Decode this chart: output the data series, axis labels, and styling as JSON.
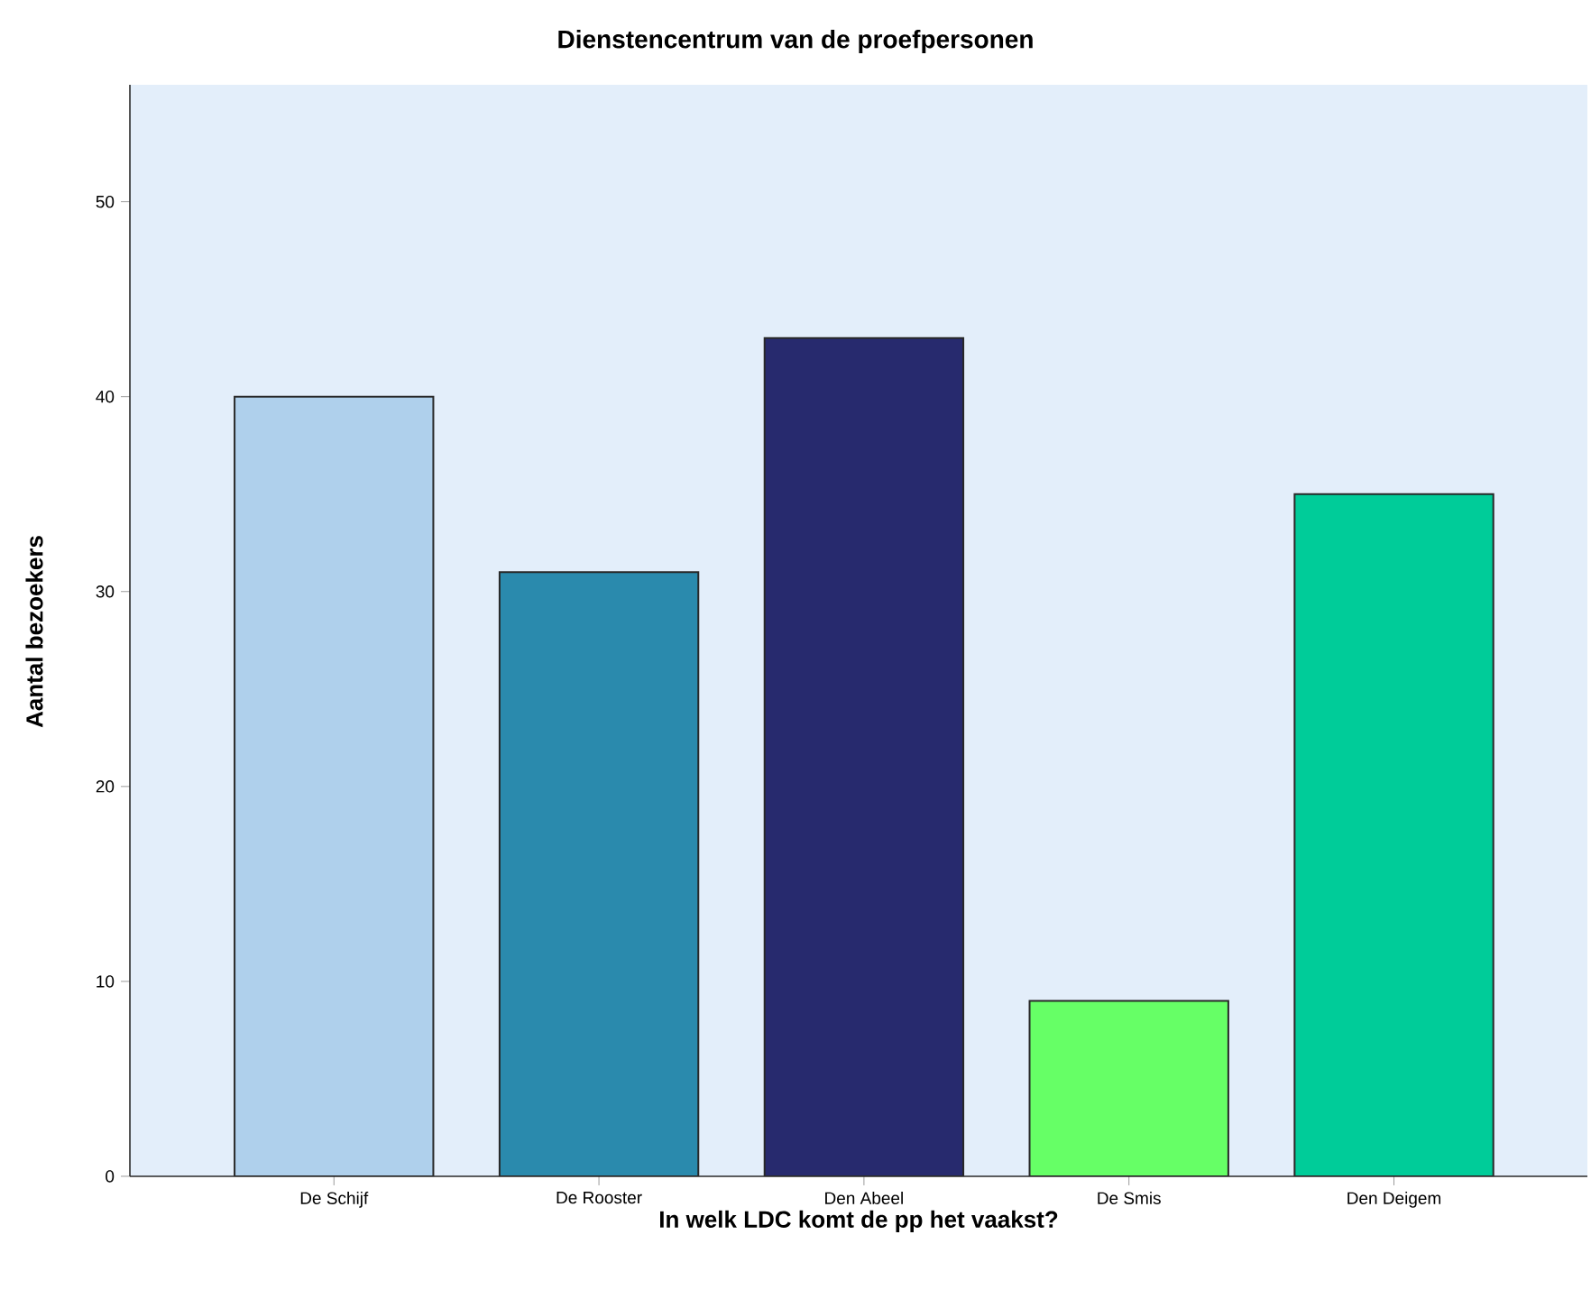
{
  "chart_data": {
    "type": "bar",
    "title": "Dienstencentrum van de proefpersonen",
    "xlabel": "In welk LDC komt de pp het vaakst?",
    "ylabel": "Aantal bezoekers",
    "categories": [
      "De Schijf",
      "De Rooster",
      "Den Abeel",
      "De Smis",
      "Den Deigem"
    ],
    "values": [
      40,
      31,
      43,
      9,
      35
    ],
    "colors": [
      "#afd0ec",
      "#2a8aad",
      "#272a6e",
      "#66ff66",
      "#00cc99"
    ],
    "ylim": [
      0,
      56
    ],
    "yticks": [
      0,
      10,
      20,
      30,
      40,
      50
    ]
  }
}
